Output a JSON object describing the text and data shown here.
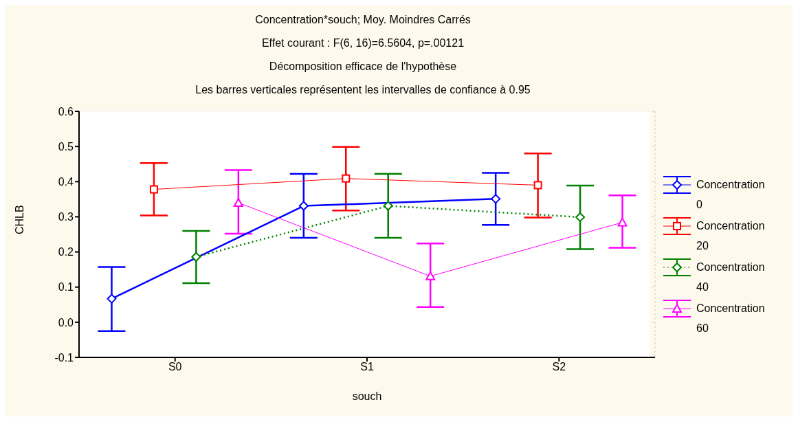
{
  "chart_data": {
    "type": "line",
    "title": "Concentration*souch; Moy. Moindres Carrés",
    "subtitle": "Effet courant : F(6, 16)=6.5604, p=.00121",
    "annotations": [
      "Décomposition efficace de l'hypothèse",
      "Les barres verticales représentent les intervalles de confiance à 0.95"
    ],
    "xlabel": "souch",
    "ylabel": "CHLB",
    "categories": [
      "S0",
      "S1",
      "S2"
    ],
    "ylim": [
      -0.1,
      0.6
    ],
    "yticks": [
      {
        "value": -0.1,
        "label": "-0.1"
      },
      {
        "value": 0,
        "label": "0.0"
      },
      {
        "value": 0.1,
        "label": "0.1"
      },
      {
        "value": 0.2,
        "label": "0.2"
      },
      {
        "value": 0.3,
        "label": "0.3"
      },
      {
        "value": 0.4,
        "label": "0.4"
      },
      {
        "value": 0.5,
        "label": "0.5"
      },
      {
        "value": 0.6,
        "label": "0.6"
      }
    ],
    "grid": true,
    "legend": "right",
    "series": [
      {
        "name": "Concentration 0",
        "color": "#0000ff",
        "marker": "diamond",
        "line_style": "solid",
        "values": [
          0.067,
          0.331,
          0.351
        ],
        "errors": [
          [
            -0.025,
            0.157
          ],
          [
            0.24,
            0.422
          ],
          [
            0.277,
            0.425
          ]
        ]
      },
      {
        "name": "Concentration 20",
        "color": "#ff0000",
        "marker": "square",
        "line_style": "solid",
        "values": [
          0.378,
          0.409,
          0.39
        ],
        "errors": [
          [
            0.304,
            0.453
          ],
          [
            0.318,
            0.499
          ],
          [
            0.298,
            0.48
          ]
        ]
      },
      {
        "name": "Concentration 40",
        "color": "#008000",
        "marker": "diamond",
        "line_style": "dotted",
        "values": [
          0.186,
          0.331,
          0.299
        ],
        "errors": [
          [
            0.111,
            0.26
          ],
          [
            0.24,
            0.422
          ],
          [
            0.208,
            0.389
          ]
        ]
      },
      {
        "name": "Concentration 60",
        "color": "#ff00ff",
        "marker": "triangle",
        "line_style": "solid",
        "values": [
          0.34,
          0.131,
          0.284
        ],
        "errors": [
          [
            0.252,
            0.433
          ],
          [
            0.043,
            0.224
          ],
          [
            0.212,
            0.361
          ]
        ]
      }
    ]
  }
}
